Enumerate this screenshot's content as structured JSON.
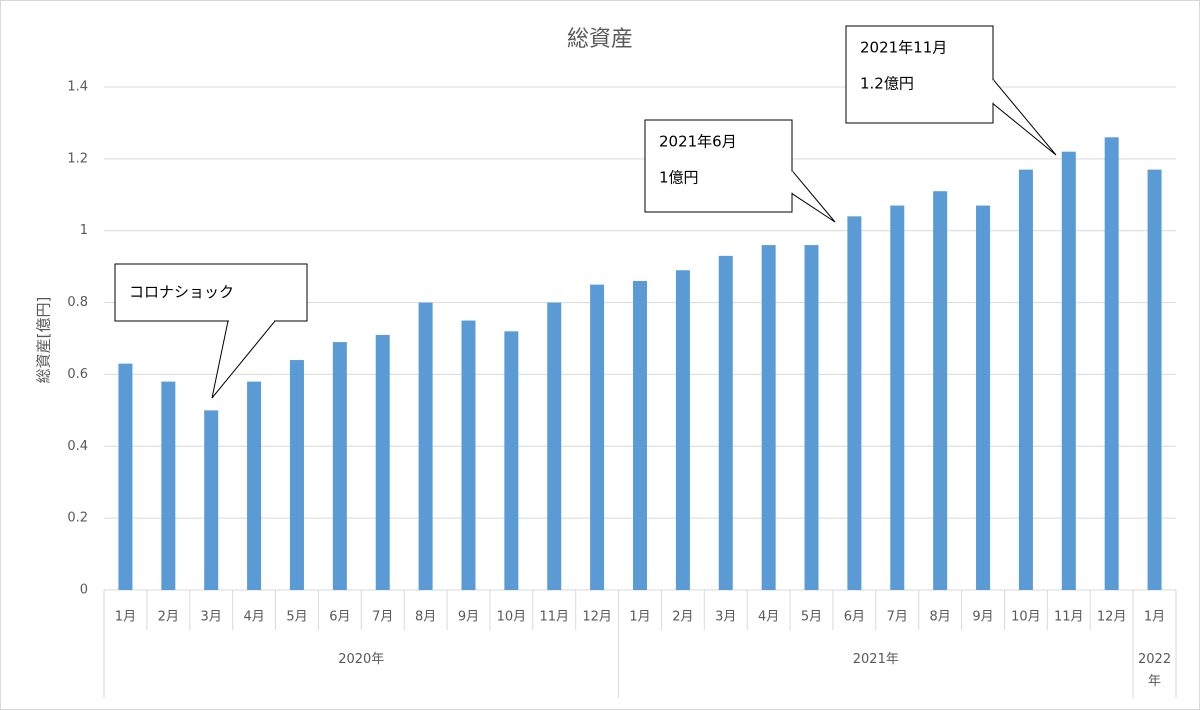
{
  "chart_data": {
    "type": "bar",
    "title": "総資産",
    "y_label": "総資産[億円]",
    "color": "#5b9bd5",
    "ylim": [
      0,
      1.4
    ],
    "yticks": [
      0,
      0.2,
      0.4,
      0.6,
      0.8,
      1,
      1.2,
      1.4
    ],
    "grid": true,
    "groups": [
      {
        "label": "2020年",
        "categories": [
          "1月",
          "2月",
          "3月",
          "4月",
          "5月",
          "6月",
          "7月",
          "8月",
          "9月",
          "10月",
          "11月",
          "12月"
        ],
        "values": [
          0.63,
          0.58,
          0.5,
          0.58,
          0.64,
          0.69,
          0.71,
          0.8,
          0.75,
          0.72,
          0.8,
          0.85
        ]
      },
      {
        "label": "2021年",
        "categories": [
          "1月",
          "2月",
          "3月",
          "4月",
          "5月",
          "6月",
          "7月",
          "8月",
          "9月",
          "10月",
          "11月",
          "12月"
        ],
        "values": [
          0.86,
          0.89,
          0.93,
          0.96,
          0.96,
          1.04,
          1.07,
          1.11,
          1.07,
          1.17,
          1.22,
          1.26
        ]
      },
      {
        "label": "2022年",
        "categories": [
          "1月"
        ],
        "values": [
          1.17
        ]
      }
    ],
    "annotations": [
      {
        "lines": [
          "コロナショック"
        ]
      },
      {
        "lines": [
          "2021年6月",
          "1億円"
        ]
      },
      {
        "lines": [
          "2021年11月",
          "1.2億円"
        ]
      }
    ]
  }
}
